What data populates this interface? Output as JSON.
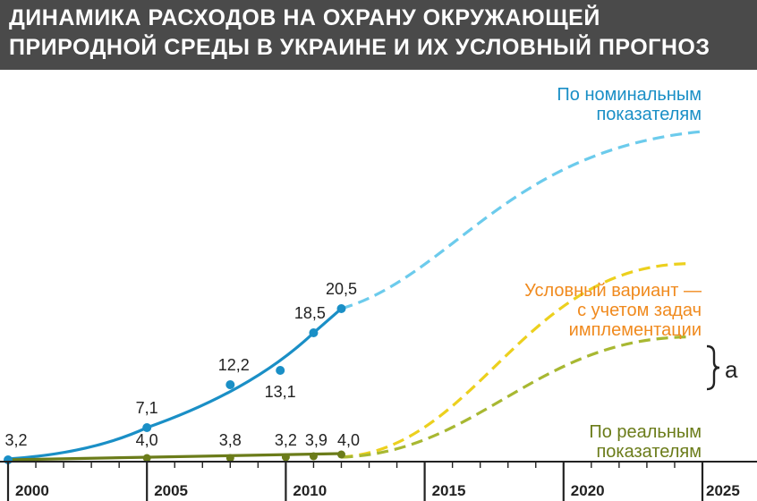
{
  "title_lines": [
    "ДИНАМИКА РАСХОДОВ НА ОХРАНУ ОКРУЖАЮЩЕЙ",
    "ПРИРОДНОЙ СРЕДЫ В УКРАИНЕ И ИХ УСЛОВНЫЙ ПРОГНОЗ"
  ],
  "colors": {
    "title_bg": "#4a4a4a",
    "nominal": "#1a8fc6",
    "nominal_forecast": "#6ccbec",
    "real": "#6b7c1a",
    "real_forecast": "#a8b832",
    "conditional": "#ecd01e",
    "conditional_label": "#f08a1e",
    "axis": "#222222"
  },
  "chart_data": {
    "type": "line",
    "x_ticks": [
      "2000",
      "2005",
      "2010",
      "2015",
      "2020",
      "2025"
    ],
    "xlim": [
      2000,
      2025
    ],
    "series": [
      {
        "name": "По номинальным показателям",
        "points": [
          {
            "x": 2000,
            "y": 3.2,
            "label": "3,2"
          },
          {
            "x": 2005,
            "y": 7.1,
            "label": "7,1"
          },
          {
            "x": 2008,
            "y": 12.2,
            "label": "12,2"
          },
          {
            "x": 2009.8,
            "y": 13.1,
            "label": "13,1"
          },
          {
            "x": 2011,
            "y": 18.5,
            "label": "18,5"
          },
          {
            "x": 2012,
            "y": 20.5,
            "label": "20,5"
          }
        ],
        "forecast": [
          [
            2012,
            20.5
          ],
          [
            2025,
            50
          ]
        ]
      },
      {
        "name": "По реальным показателям",
        "points": [
          {
            "x": 2005,
            "y": 4.0,
            "label": "4,0"
          },
          {
            "x": 2008,
            "y": 3.8,
            "label": "3,8"
          },
          {
            "x": 2010,
            "y": 3.2,
            "label": "3,2"
          },
          {
            "x": 2011,
            "y": 3.9,
            "label": "3,9"
          },
          {
            "x": 2012,
            "y": 4.0,
            "label": "4,0"
          }
        ],
        "forecast": [
          [
            2012,
            4.0
          ],
          [
            2025,
            18
          ]
        ]
      },
      {
        "name": "Условный вариант — с учетом задач имплементации",
        "forecast": [
          [
            2012,
            4.0
          ],
          [
            2025,
            28
          ]
        ]
      }
    ],
    "legend_labels": {
      "nominal": [
        "По номинальным",
        "показателям"
      ],
      "conditional": [
        "Условный вариант —",
        "с учетом задач",
        "имплементации"
      ],
      "real": [
        "По реальным",
        "показателям"
      ],
      "brace": "а"
    }
  }
}
